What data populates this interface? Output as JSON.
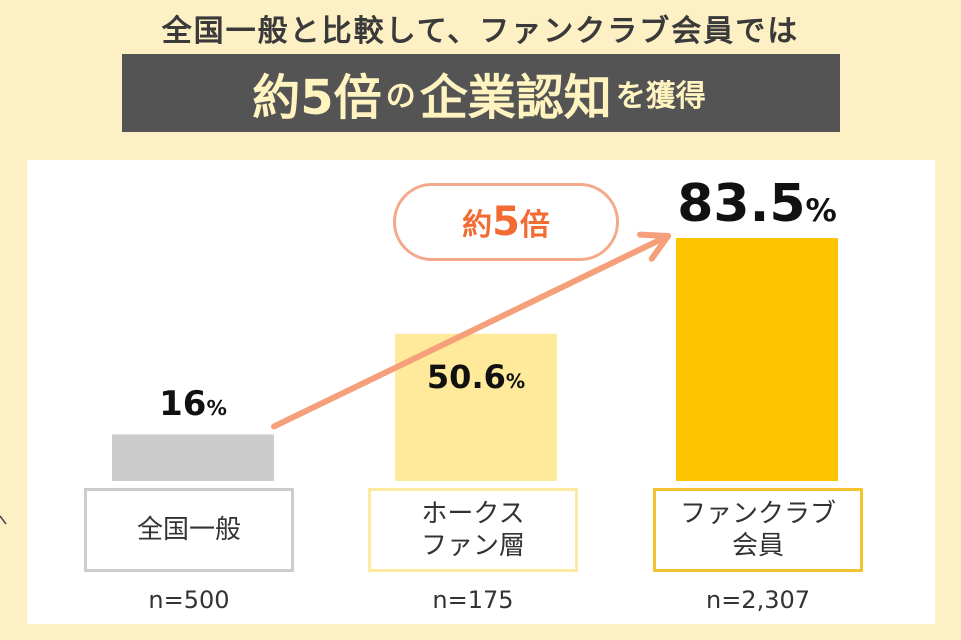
{
  "header": {
    "subtitle": "全国一般と比較して、ファンクラブ会員では",
    "banner_part1": "約5倍",
    "banner_part2": "の",
    "banner_part3": "企業認知",
    "banner_part4": "を獲得"
  },
  "callout": {
    "prefix": "約",
    "number": "5",
    "suffix": "倍"
  },
  "chart_data": {
    "type": "bar",
    "unit": "%",
    "categories": [
      "全国一般",
      "ホークス\nファン層",
      "ファンクラブ\n会員"
    ],
    "sample_sizes": [
      "n=500",
      "n=175",
      "n=2,307"
    ],
    "value_text": [
      {
        "main": "16",
        "pct": "%"
      },
      {
        "main": "50.6",
        "pct": "%"
      },
      {
        "main": "83.5",
        "pct": "%"
      }
    ],
    "values": [
      16,
      50.6,
      83.5
    ],
    "ylim": [
      0,
      83.5
    ],
    "colors": {
      "bars": [
        "#cccccc",
        "#ffe99a",
        "#ffc400"
      ],
      "borders": [
        "#cccccc",
        "#fde9a0",
        "#f4c430"
      ],
      "arrow": "#f5a07a",
      "callout_text": "#f26b32"
    }
  }
}
